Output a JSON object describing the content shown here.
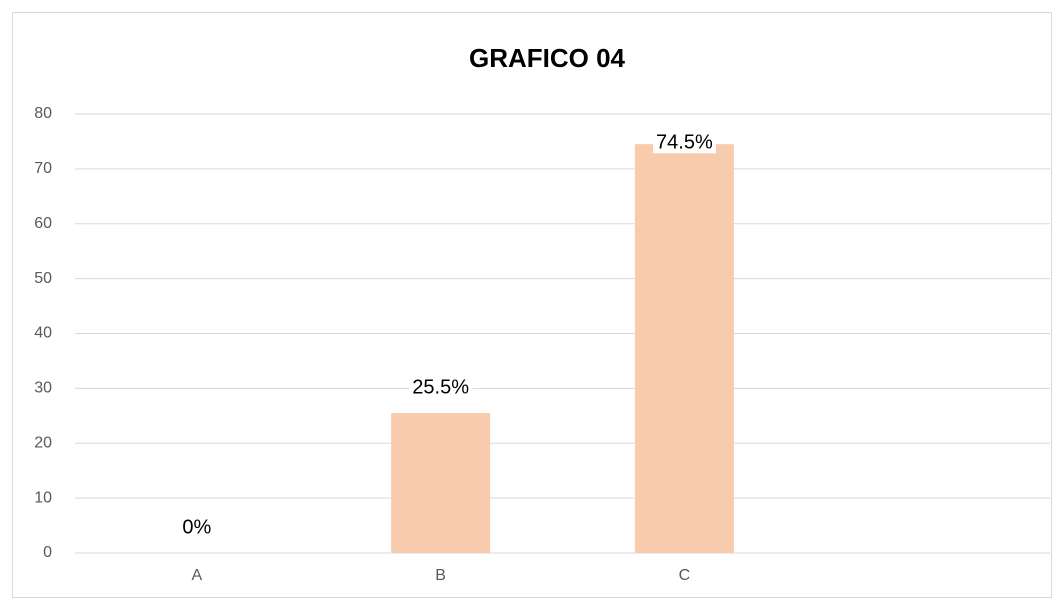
{
  "chart_data": {
    "type": "bar",
    "title": "GRAFICO 04",
    "categories": [
      "A",
      "B",
      "C",
      null
    ],
    "values": [
      0,
      25.5,
      74.5,
      null
    ],
    "value_labels": [
      "0%",
      "25.5%",
      "74.5%",
      null
    ],
    "color": "#f8cbad",
    "ylim": [
      0,
      80
    ],
    "yticks": [
      0,
      10,
      20,
      30,
      40,
      50,
      60,
      70,
      80
    ],
    "grid": true
  }
}
